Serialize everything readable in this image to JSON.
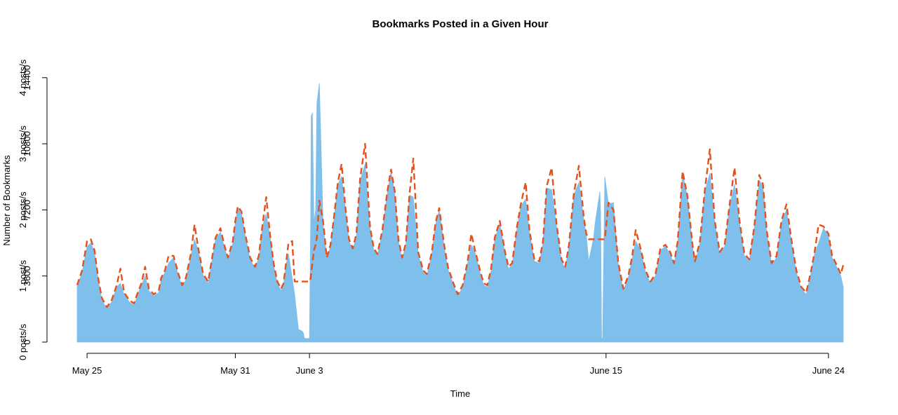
{
  "chart_data": {
    "type": "area",
    "title": "Bookmarks Posted in a Given Hour",
    "xlabel": "Time",
    "ylabel": "Number of Bookmarks",
    "ylim": [
      0,
      15500
    ],
    "x_ticks": [
      {
        "label": "May 25",
        "day": 0
      },
      {
        "label": "May 31",
        "day": 6
      },
      {
        "label": "June 3",
        "day": 9
      },
      {
        "label": "June 15",
        "day": 21
      },
      {
        "label": "June 24",
        "day": 30
      }
    ],
    "y_ticks_count": [
      {
        "label": "0",
        "value": 0
      },
      {
        "label": "3600",
        "value": 3600
      },
      {
        "label": "7200",
        "value": 7200
      },
      {
        "label": "10800",
        "value": 10800
      },
      {
        "label": "14400",
        "value": 14400
      }
    ],
    "y_ticks_rate": [
      {
        "label": "0 posts/s",
        "value": 0
      },
      {
        "label": "1 post/s",
        "value": 3600
      },
      {
        "label": "2 posts/s",
        "value": 7200
      },
      {
        "label": "3 posts/s",
        "value": 10800
      },
      {
        "label": "4 posts/s",
        "value": 14400
      }
    ],
    "x_domain": [
      -0.4,
      30.6
    ],
    "legend": "none",
    "grid": false,
    "colors": {
      "observed": "#7fbfec",
      "smoothed": "#e4511c"
    },
    "series": [
      {
        "kind": "filled-area",
        "x": [
          -0.4,
          -0.2,
          0.0,
          0.15,
          0.3,
          0.45,
          0.6,
          0.8,
          1.0,
          1.2,
          1.35,
          1.5,
          1.7,
          1.9,
          2.0,
          2.2,
          2.35,
          2.5,
          2.7,
          2.9,
          3.0,
          3.15,
          3.3,
          3.5,
          3.7,
          3.85,
          4.0,
          4.2,
          4.35,
          4.5,
          4.7,
          4.9,
          5.0,
          5.2,
          5.4,
          5.55,
          5.7,
          5.9,
          6.0,
          6.1,
          6.25,
          6.4,
          6.6,
          6.8,
          6.95,
          7.1,
          7.25,
          7.4,
          7.55,
          7.7,
          7.85,
          7.95,
          8.05,
          8.15,
          8.3,
          8.4,
          8.55,
          8.7,
          8.75,
          8.8,
          8.82,
          8.88,
          8.95,
          9.0,
          9.05,
          9.07,
          9.12,
          9.18,
          9.25,
          9.3,
          9.4,
          9.55,
          9.7,
          9.85,
          10.0,
          10.15,
          10.3,
          10.45,
          10.6,
          10.75,
          10.9,
          11.05,
          11.25,
          11.45,
          11.6,
          11.75,
          11.95,
          12.15,
          12.3,
          12.45,
          12.6,
          12.75,
          12.9,
          13.05,
          13.2,
          13.4,
          13.6,
          13.75,
          13.95,
          14.1,
          14.25,
          14.45,
          14.6,
          14.8,
          15.0,
          15.2,
          15.4,
          15.55,
          15.7,
          15.9,
          16.05,
          16.2,
          16.35,
          16.5,
          16.7,
          16.9,
          17.05,
          17.2,
          17.4,
          17.55,
          17.75,
          17.9,
          18.1,
          18.3,
          18.45,
          18.6,
          18.8,
          19.0,
          19.2,
          19.35,
          19.5,
          19.7,
          19.9,
          20.1,
          20.2,
          20.3,
          20.5,
          20.55,
          20.75,
          20.78,
          20.82,
          20.86,
          20.95,
          21.1,
          21.3,
          21.5,
          21.7,
          21.9,
          22.05,
          22.2,
          22.4,
          22.6,
          22.8,
          23.0,
          23.2,
          23.4,
          23.6,
          23.75,
          23.9,
          24.1,
          24.3,
          24.5,
          24.6,
          24.8,
          25.0,
          25.2,
          25.4,
          25.6,
          25.8,
          26.0,
          26.2,
          26.4,
          26.6,
          26.8,
          27.0,
          27.2,
          27.35,
          27.5,
          27.7,
          27.9,
          28.1,
          28.3,
          28.5,
          28.7,
          28.9,
          29.1,
          29.3,
          29.45,
          29.6,
          29.8,
          30.0,
          30.15,
          30.3,
          30.5,
          30.6
        ],
        "y": [
          3000,
          3800,
          5200,
          5400,
          4900,
          3400,
          2300,
          1800,
          2200,
          3000,
          3200,
          2600,
          2200,
          2000,
          2400,
          3100,
          3600,
          2800,
          2500,
          2700,
          3400,
          3800,
          4300,
          4600,
          3600,
          3000,
          3400,
          4700,
          5600,
          5000,
          3600,
          3200,
          4000,
          5600,
          6000,
          5200,
          4500,
          5400,
          6500,
          7300,
          7000,
          5800,
          4500,
          4000,
          4600,
          6300,
          7000,
          5800,
          4200,
          3200,
          2800,
          3100,
          4200,
          4800,
          3500,
          2600,
          700,
          600,
          500,
          200,
          200,
          200,
          200,
          200,
          6800,
          12300,
          12500,
          6500,
          7200,
          13000,
          14100,
          6500,
          4500,
          5200,
          6800,
          8600,
          9000,
          7300,
          5500,
          5000,
          5800,
          8800,
          9700,
          6200,
          5000,
          4700,
          6000,
          8100,
          9300,
          8100,
          5500,
          4500,
          5300,
          8000,
          7900,
          4800,
          3800,
          3600,
          4800,
          6400,
          7200,
          5200,
          4000,
          3200,
          2500,
          3000,
          4300,
          5300,
          4900,
          3800,
          3100,
          3000,
          3900,
          5600,
          6500,
          4900,
          4000,
          4200,
          6200,
          7400,
          7800,
          6000,
          4400,
          4300,
          5400,
          8400,
          8300,
          6300,
          4400,
          4000,
          5200,
          8000,
          8700,
          6700,
          5800,
          4400,
          5700,
          6400,
          8200,
          7000,
          200,
          200,
          9000,
          7500,
          7600,
          4200,
          2800,
          3500,
          4500,
          5500,
          5000,
          3800,
          3200,
          3600,
          5000,
          5200,
          4800,
          4200,
          5400,
          9200,
          7800,
          5200,
          4300,
          5400,
          8200,
          9200,
          6500,
          4800,
          5200,
          7400,
          8600,
          6500,
          4700,
          4400,
          6200,
          8800,
          8500,
          6000,
          4200,
          4600,
          6500,
          7200,
          5500,
          3800,
          2900,
          2600,
          3800,
          4900,
          5400,
          6200,
          5800,
          4600,
          4200,
          3600,
          3000
        ]
      },
      {
        "kind": "dashed-line",
        "x": [
          -0.4,
          -0.2,
          0.0,
          0.15,
          0.3,
          0.45,
          0.6,
          0.8,
          1.0,
          1.2,
          1.35,
          1.5,
          1.7,
          1.9,
          2.0,
          2.2,
          2.35,
          2.5,
          2.7,
          2.9,
          3.0,
          3.15,
          3.3,
          3.5,
          3.7,
          3.85,
          4.0,
          4.2,
          4.35,
          4.5,
          4.7,
          4.9,
          5.0,
          5.2,
          5.4,
          5.55,
          5.7,
          5.9,
          6.0,
          6.1,
          6.25,
          6.4,
          6.6,
          6.8,
          6.95,
          7.1,
          7.25,
          7.4,
          7.55,
          7.7,
          7.85,
          7.95,
          8.05,
          8.15,
          8.3,
          8.4,
          8.55,
          8.7,
          8.75,
          8.8,
          8.82,
          8.88,
          8.95,
          9.0,
          9.05,
          9.07,
          9.12,
          9.18,
          9.25,
          9.3,
          9.4,
          9.55,
          9.7,
          9.85,
          10.0,
          10.15,
          10.3,
          10.45,
          10.6,
          10.75,
          10.9,
          11.05,
          11.25,
          11.45,
          11.6,
          11.75,
          11.95,
          12.15,
          12.3,
          12.45,
          12.6,
          12.75,
          12.9,
          13.05,
          13.2,
          13.4,
          13.6,
          13.75,
          13.95,
          14.1,
          14.25,
          14.45,
          14.6,
          14.8,
          15.0,
          15.2,
          15.4,
          15.55,
          15.7,
          15.9,
          16.05,
          16.2,
          16.35,
          16.5,
          16.7,
          16.9,
          17.05,
          17.2,
          17.4,
          17.55,
          17.75,
          17.9,
          18.1,
          18.3,
          18.45,
          18.6,
          18.8,
          19.0,
          19.2,
          19.35,
          19.5,
          19.7,
          19.9,
          20.1,
          20.2,
          20.3,
          20.5,
          20.55,
          20.75,
          20.78,
          20.82,
          20.86,
          20.95,
          21.1,
          21.3,
          21.5,
          21.7,
          21.9,
          22.05,
          22.2,
          22.4,
          22.6,
          22.8,
          23.0,
          23.2,
          23.4,
          23.6,
          23.75,
          23.9,
          24.1,
          24.3,
          24.5,
          24.6,
          24.8,
          25.0,
          25.2,
          25.4,
          25.6,
          25.8,
          26.0,
          26.2,
          26.4,
          26.6,
          26.8,
          27.0,
          27.2,
          27.35,
          27.5,
          27.7,
          27.9,
          28.1,
          28.3,
          28.5,
          28.7,
          28.9,
          29.1,
          29.3,
          29.45,
          29.6,
          29.8,
          30.0,
          30.15,
          30.3,
          30.5,
          30.6
        ],
        "y": [
          3100,
          3900,
          5500,
          5600,
          5000,
          3500,
          2400,
          1900,
          2300,
          3100,
          4000,
          2700,
          2300,
          2100,
          2500,
          3200,
          4100,
          2900,
          2600,
          2800,
          3500,
          3900,
          4700,
          4700,
          3700,
          3100,
          3500,
          4800,
          6400,
          5100,
          3700,
          3300,
          4100,
          5700,
          6200,
          5300,
          4600,
          5500,
          6600,
          7400,
          7100,
          5900,
          4600,
          4100,
          4700,
          6400,
          7900,
          5900,
          4300,
          3300,
          2900,
          3200,
          4300,
          5400,
          5500,
          3300,
          3300,
          3300,
          3300,
          3300,
          3300,
          3300,
          3300,
          3300,
          3500,
          3800,
          4300,
          5000,
          5300,
          5700,
          7700,
          6600,
          4600,
          5300,
          6900,
          8700,
          9700,
          7400,
          5600,
          5100,
          5900,
          8900,
          10800,
          6300,
          5100,
          4800,
          6100,
          8200,
          9400,
          8200,
          5600,
          4600,
          5400,
          8100,
          10000,
          4900,
          3900,
          3700,
          4900,
          6500,
          7300,
          5300,
          4100,
          3300,
          2600,
          3100,
          4400,
          5900,
          5000,
          3900,
          3200,
          3100,
          4000,
          5700,
          6600,
          5000,
          4100,
          4300,
          6300,
          7500,
          8700,
          6100,
          4500,
          4400,
          5500,
          8500,
          9500,
          6400,
          4500,
          4100,
          5300,
          8100,
          9600,
          6800,
          5900,
          5600,
          5600,
          5600,
          5600,
          5600,
          5600,
          5600,
          5600,
          7600,
          7200,
          4300,
          2900,
          3600,
          4600,
          6100,
          5100,
          3900,
          3300,
          3700,
          5100,
          5300,
          4900,
          4300,
          5500,
          9300,
          7900,
          5300,
          4400,
          5500,
          8300,
          10500,
          6600,
          4900,
          5300,
          7500,
          9500,
          6600,
          4800,
          4500,
          6300,
          9100,
          8600,
          6100,
          4300,
          4700,
          6600,
          7500,
          5600,
          3900,
          3000,
          2700,
          3900,
          5000,
          6400,
          6300,
          5900,
          4700,
          4300,
          3700,
          4200
        ]
      }
    ]
  }
}
